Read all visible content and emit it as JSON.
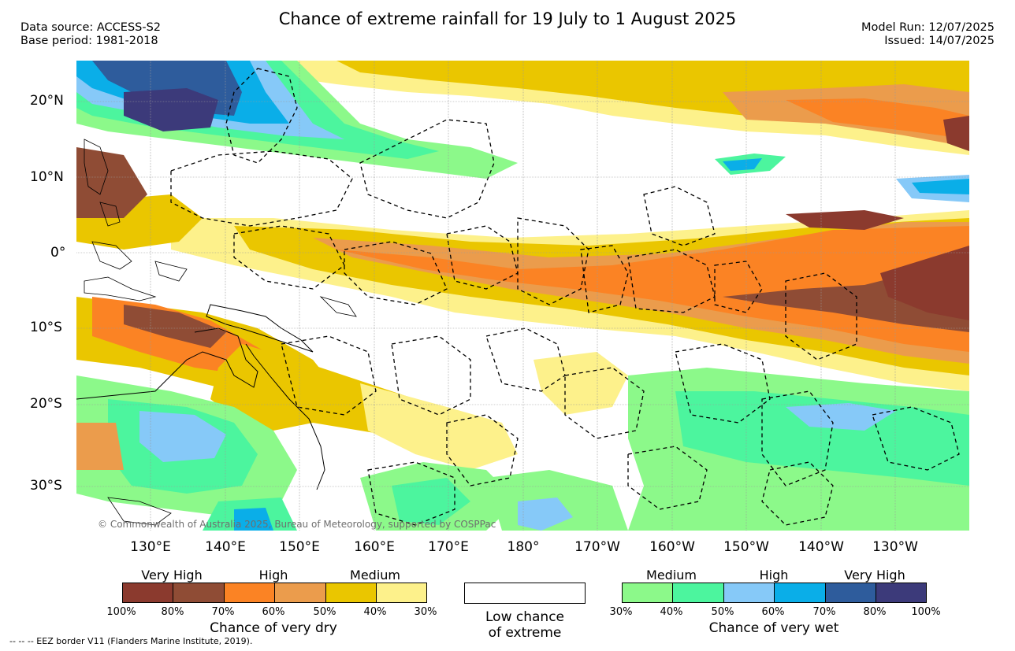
{
  "title": "Chance of extreme rainfall for 19 July to 1 August 2025",
  "data_source": "Data source: ACCESS-S2",
  "base_period": "Base period: 1981-2018",
  "model_run": "Model Run: 12/07/2025",
  "issued": "Issued: 14/07/2025",
  "copyright": "© Commonwealth of Australia 2025, Bureau of Meteorology, supported by COSPPac",
  "eez_note": "--  --  -- EEZ border V11 (Flanders Marine Institute, 2019).",
  "lat_labels": [
    "20°N",
    "10°N",
    "0°",
    "10°S",
    "20°S",
    "30°S"
  ],
  "lon_labels": [
    "130°E",
    "140°E",
    "150°E",
    "160°E",
    "170°E",
    "180°",
    "170°W",
    "160°W",
    "150°W",
    "140°W",
    "130°W"
  ],
  "legend": {
    "dry": {
      "title": "Chance of very dry",
      "categories": [
        "Very High",
        "High",
        "Medium"
      ],
      "percentages": [
        "100%",
        "80%",
        "70%",
        "60%",
        "50%",
        "40%",
        "30%"
      ],
      "colors": [
        "#8b3a2e",
        "#8f4c35",
        "#fb8324",
        "#eb9c4c",
        "#eac600",
        "#fdf18b"
      ]
    },
    "neutral": {
      "label_line1": "Low chance",
      "label_line2": "of extreme",
      "color": "#ffffff"
    },
    "wet": {
      "title": "Chance of very wet",
      "categories": [
        "Medium",
        "High",
        "Very High"
      ],
      "percentages": [
        "30%",
        "40%",
        "50%",
        "60%",
        "70%",
        "80%",
        "100%"
      ],
      "colors": [
        "#8cf98a",
        "#4cf59e",
        "#86c9f8",
        "#0aaee8",
        "#2e5c9c",
        "#3c3a7a"
      ]
    }
  }
}
